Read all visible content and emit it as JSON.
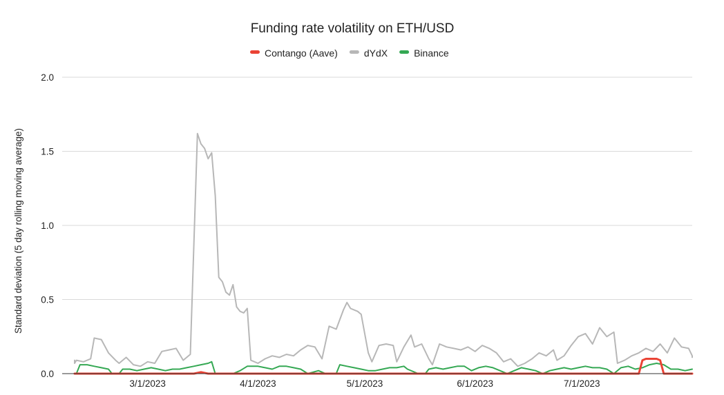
{
  "chart_data": {
    "type": "line",
    "title": "Funding rate volatility on ETH/USD",
    "ylabel": "Standard deviation (5 day rolling moving average)",
    "xlabel": "",
    "x_range": [
      "2023-02-05",
      "2023-08-01"
    ],
    "ylim": [
      0,
      2.0
    ],
    "yticks": [
      "0.0",
      "0.5",
      "1.0",
      "1.5",
      "2.0"
    ],
    "xticks": [
      {
        "date": "2023-03-01",
        "label": "3/1/2023"
      },
      {
        "date": "2023-04-01",
        "label": "4/1/2023"
      },
      {
        "date": "2023-05-01",
        "label": "5/1/2023"
      },
      {
        "date": "2023-06-01",
        "label": "6/1/2023"
      },
      {
        "date": "2023-07-01",
        "label": "7/1/2023"
      }
    ],
    "grid": true,
    "legend_position": "top",
    "series": [
      {
        "name": "dYdX",
        "color": "#b7b7b7",
        "points": [
          [
            "2023-02-05",
            0.09
          ],
          [
            "2023-02-07",
            0.07
          ],
          [
            "2023-02-09",
            0.09
          ],
          [
            "2023-02-11",
            0.08
          ],
          [
            "2023-02-13",
            0.1
          ],
          [
            "2023-02-14",
            0.24
          ],
          [
            "2023-02-16",
            0.23
          ],
          [
            "2023-02-18",
            0.14
          ],
          [
            "2023-02-20",
            0.09
          ],
          [
            "2023-02-21",
            0.07
          ],
          [
            "2023-02-23",
            0.11
          ],
          [
            "2023-02-25",
            0.06
          ],
          [
            "2023-02-27",
            0.05
          ],
          [
            "2023-03-01",
            0.08
          ],
          [
            "2023-03-03",
            0.07
          ],
          [
            "2023-03-05",
            0.15
          ],
          [
            "2023-03-07",
            0.16
          ],
          [
            "2023-03-09",
            0.17
          ],
          [
            "2023-03-11",
            0.09
          ],
          [
            "2023-03-13",
            0.13
          ],
          [
            "2023-03-15",
            1.62
          ],
          [
            "2023-03-16",
            1.55
          ],
          [
            "2023-03-17",
            1.52
          ],
          [
            "2023-03-18",
            1.45
          ],
          [
            "2023-03-19",
            1.49
          ],
          [
            "2023-03-20",
            1.2
          ],
          [
            "2023-03-21",
            0.65
          ],
          [
            "2023-03-22",
            0.62
          ],
          [
            "2023-03-23",
            0.55
          ],
          [
            "2023-03-24",
            0.53
          ],
          [
            "2023-03-25",
            0.6
          ],
          [
            "2023-03-26",
            0.45
          ],
          [
            "2023-03-27",
            0.42
          ],
          [
            "2023-03-28",
            0.41
          ],
          [
            "2023-03-29",
            0.44
          ],
          [
            "2023-03-30",
            0.09
          ],
          [
            "2023-04-01",
            0.07
          ],
          [
            "2023-04-03",
            0.1
          ],
          [
            "2023-04-05",
            0.12
          ],
          [
            "2023-04-07",
            0.11
          ],
          [
            "2023-04-09",
            0.13
          ],
          [
            "2023-04-11",
            0.12
          ],
          [
            "2023-04-13",
            0.16
          ],
          [
            "2023-04-15",
            0.19
          ],
          [
            "2023-04-17",
            0.18
          ],
          [
            "2023-04-19",
            0.1
          ],
          [
            "2023-04-21",
            0.32
          ],
          [
            "2023-04-23",
            0.3
          ],
          [
            "2023-04-25",
            0.43
          ],
          [
            "2023-04-26",
            0.48
          ],
          [
            "2023-04-27",
            0.44
          ],
          [
            "2023-04-29",
            0.42
          ],
          [
            "2023-04-30",
            0.4
          ],
          [
            "2023-05-02",
            0.14
          ],
          [
            "2023-05-03",
            0.08
          ],
          [
            "2023-05-05",
            0.19
          ],
          [
            "2023-05-07",
            0.2
          ],
          [
            "2023-05-09",
            0.19
          ],
          [
            "2023-05-10",
            0.08
          ],
          [
            "2023-05-12",
            0.18
          ],
          [
            "2023-05-14",
            0.26
          ],
          [
            "2023-05-15",
            0.18
          ],
          [
            "2023-05-17",
            0.2
          ],
          [
            "2023-05-19",
            0.1
          ],
          [
            "2023-05-20",
            0.06
          ],
          [
            "2023-05-22",
            0.2
          ],
          [
            "2023-05-24",
            0.18
          ],
          [
            "2023-05-26",
            0.17
          ],
          [
            "2023-05-28",
            0.16
          ],
          [
            "2023-05-30",
            0.18
          ],
          [
            "2023-06-01",
            0.15
          ],
          [
            "2023-06-03",
            0.19
          ],
          [
            "2023-06-05",
            0.17
          ],
          [
            "2023-06-07",
            0.14
          ],
          [
            "2023-06-09",
            0.08
          ],
          [
            "2023-06-11",
            0.1
          ],
          [
            "2023-06-13",
            0.05
          ],
          [
            "2023-06-15",
            0.07
          ],
          [
            "2023-06-17",
            0.1
          ],
          [
            "2023-06-19",
            0.14
          ],
          [
            "2023-06-21",
            0.12
          ],
          [
            "2023-06-23",
            0.16
          ],
          [
            "2023-06-24",
            0.09
          ],
          [
            "2023-06-26",
            0.12
          ],
          [
            "2023-06-28",
            0.19
          ],
          [
            "2023-06-30",
            0.25
          ],
          [
            "2023-07-02",
            0.27
          ],
          [
            "2023-07-04",
            0.2
          ],
          [
            "2023-07-06",
            0.31
          ],
          [
            "2023-07-08",
            0.25
          ],
          [
            "2023-07-10",
            0.28
          ],
          [
            "2023-07-11",
            0.07
          ],
          [
            "2023-07-13",
            0.09
          ],
          [
            "2023-07-15",
            0.12
          ],
          [
            "2023-07-17",
            0.14
          ],
          [
            "2023-07-19",
            0.17
          ],
          [
            "2023-07-21",
            0.15
          ],
          [
            "2023-07-23",
            0.2
          ],
          [
            "2023-07-25",
            0.14
          ],
          [
            "2023-07-27",
            0.24
          ],
          [
            "2023-07-29",
            0.18
          ],
          [
            "2023-07-31",
            0.17
          ],
          [
            "2023-08-01",
            0.12
          ],
          [
            "2023-08-03",
            0.11
          ]
        ]
      },
      {
        "name": "Binance",
        "color": "#34a853",
        "points": [
          [
            "2023-02-05",
            0.0
          ],
          [
            "2023-02-09",
            0.0
          ],
          [
            "2023-02-10",
            0.06
          ],
          [
            "2023-02-12",
            0.06
          ],
          [
            "2023-02-14",
            0.05
          ],
          [
            "2023-02-16",
            0.04
          ],
          [
            "2023-02-18",
            0.03
          ],
          [
            "2023-02-19",
            0.0
          ],
          [
            "2023-02-21",
            0.0
          ],
          [
            "2023-02-22",
            0.03
          ],
          [
            "2023-02-24",
            0.03
          ],
          [
            "2023-02-26",
            0.02
          ],
          [
            "2023-02-28",
            0.03
          ],
          [
            "2023-03-02",
            0.04
          ],
          [
            "2023-03-04",
            0.03
          ],
          [
            "2023-03-06",
            0.02
          ],
          [
            "2023-03-08",
            0.03
          ],
          [
            "2023-03-10",
            0.03
          ],
          [
            "2023-03-12",
            0.04
          ],
          [
            "2023-03-14",
            0.05
          ],
          [
            "2023-03-16",
            0.06
          ],
          [
            "2023-03-18",
            0.07
          ],
          [
            "2023-03-19",
            0.08
          ],
          [
            "2023-03-20",
            0.0
          ],
          [
            "2023-03-23",
            0.0
          ],
          [
            "2023-03-25",
            0.0
          ],
          [
            "2023-03-27",
            0.02
          ],
          [
            "2023-03-29",
            0.05
          ],
          [
            "2023-04-01",
            0.05
          ],
          [
            "2023-04-03",
            0.04
          ],
          [
            "2023-04-05",
            0.03
          ],
          [
            "2023-04-07",
            0.05
          ],
          [
            "2023-04-09",
            0.05
          ],
          [
            "2023-04-11",
            0.04
          ],
          [
            "2023-04-13",
            0.03
          ],
          [
            "2023-04-15",
            0.0
          ],
          [
            "2023-04-18",
            0.02
          ],
          [
            "2023-04-20",
            0.0
          ],
          [
            "2023-04-23",
            0.0
          ],
          [
            "2023-04-24",
            0.06
          ],
          [
            "2023-04-26",
            0.05
          ],
          [
            "2023-04-28",
            0.04
          ],
          [
            "2023-04-30",
            0.03
          ],
          [
            "2023-05-02",
            0.02
          ],
          [
            "2023-05-04",
            0.02
          ],
          [
            "2023-05-06",
            0.03
          ],
          [
            "2023-05-08",
            0.04
          ],
          [
            "2023-05-10",
            0.04
          ],
          [
            "2023-05-12",
            0.05
          ],
          [
            "2023-05-13",
            0.03
          ],
          [
            "2023-05-16",
            0.0
          ],
          [
            "2023-05-18",
            0.0
          ],
          [
            "2023-05-19",
            0.03
          ],
          [
            "2023-05-21",
            0.04
          ],
          [
            "2023-05-23",
            0.03
          ],
          [
            "2023-05-25",
            0.04
          ],
          [
            "2023-05-27",
            0.05
          ],
          [
            "2023-05-29",
            0.05
          ],
          [
            "2023-05-31",
            0.02
          ],
          [
            "2023-06-02",
            0.04
          ],
          [
            "2023-06-04",
            0.05
          ],
          [
            "2023-06-06",
            0.04
          ],
          [
            "2023-06-08",
            0.02
          ],
          [
            "2023-06-10",
            0.0
          ],
          [
            "2023-06-12",
            0.02
          ],
          [
            "2023-06-14",
            0.04
          ],
          [
            "2023-06-16",
            0.03
          ],
          [
            "2023-06-18",
            0.02
          ],
          [
            "2023-06-20",
            0.0
          ],
          [
            "2023-06-22",
            0.02
          ],
          [
            "2023-06-24",
            0.03
          ],
          [
            "2023-06-26",
            0.04
          ],
          [
            "2023-06-28",
            0.03
          ],
          [
            "2023-06-30",
            0.04
          ],
          [
            "2023-07-02",
            0.05
          ],
          [
            "2023-07-04",
            0.04
          ],
          [
            "2023-07-06",
            0.04
          ],
          [
            "2023-07-08",
            0.03
          ],
          [
            "2023-07-10",
            0.0
          ],
          [
            "2023-07-12",
            0.04
          ],
          [
            "2023-07-14",
            0.05
          ],
          [
            "2023-07-16",
            0.03
          ],
          [
            "2023-07-18",
            0.04
          ],
          [
            "2023-07-20",
            0.06
          ],
          [
            "2023-07-22",
            0.07
          ],
          [
            "2023-07-24",
            0.06
          ],
          [
            "2023-07-26",
            0.03
          ],
          [
            "2023-07-28",
            0.03
          ],
          [
            "2023-07-30",
            0.02
          ],
          [
            "2023-08-01",
            0.03
          ],
          [
            "2023-08-03",
            0.03
          ]
        ]
      },
      {
        "name": "Contango (Aave)",
        "color": "#ea4335",
        "points": [
          [
            "2023-02-05",
            0.0
          ],
          [
            "2023-03-14",
            0.0
          ],
          [
            "2023-03-16",
            0.01
          ],
          [
            "2023-03-18",
            0.0
          ],
          [
            "2023-07-17",
            0.0
          ],
          [
            "2023-07-18",
            0.09
          ],
          [
            "2023-07-19",
            0.1
          ],
          [
            "2023-07-22",
            0.1
          ],
          [
            "2023-07-23",
            0.09
          ],
          [
            "2023-07-24",
            0.0
          ],
          [
            "2023-08-03",
            0.0
          ]
        ]
      }
    ]
  }
}
